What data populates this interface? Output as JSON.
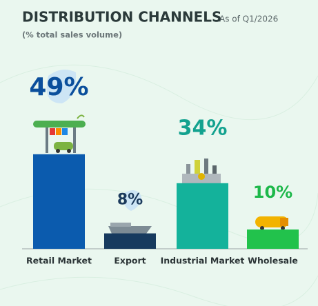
{
  "chart_data": {
    "type": "bar",
    "title": "DISTRIBUTION CHANNELS",
    "subtitle": "As of Q1/2026",
    "y_label": "(% total sales volume)",
    "categories": [
      "Retail Market",
      "Export",
      "Industrial Market",
      "Wholesale"
    ],
    "values": [
      49,
      8,
      34,
      10
    ],
    "value_labels": [
      "49%",
      "8%",
      "34%",
      "10%"
    ],
    "colors": [
      "#0b5bae",
      "#173a5e",
      "#14b29b",
      "#22c24c"
    ],
    "label_colors": [
      "#0b4f9c",
      "#1b3a5c",
      "#13a28f",
      "#1db84a"
    ]
  }
}
